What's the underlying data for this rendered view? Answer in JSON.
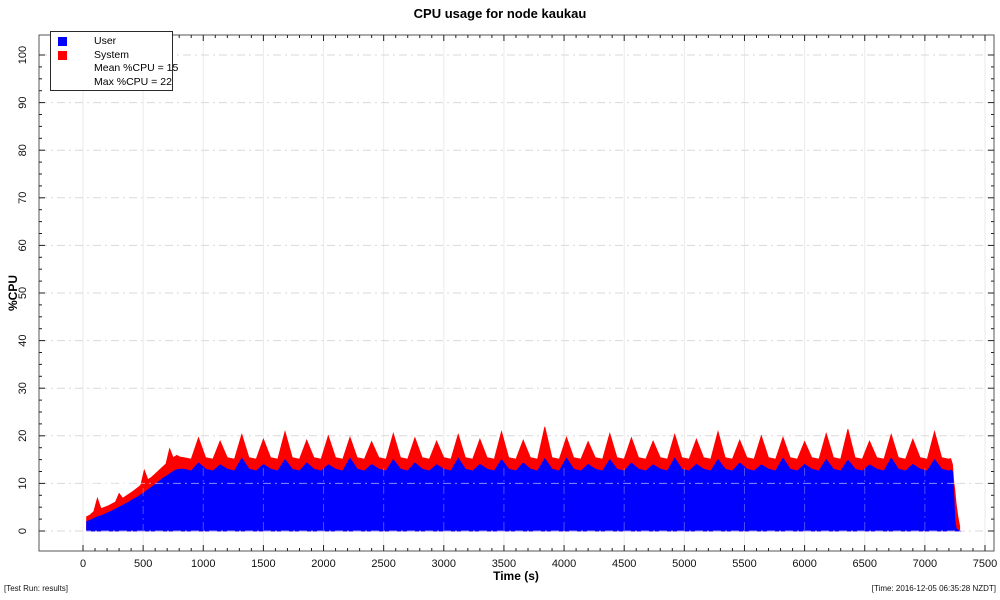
{
  "window": {
    "background": "#ffffff"
  },
  "footer": {
    "left": "[Test Run: results]",
    "right": "[Time: 2016-12-05 06:35:28 NZDT]"
  },
  "chart_data": {
    "type": "area",
    "stacked": true,
    "title": "CPU usage for node kaukau",
    "xlabel": "Time (s)",
    "ylabel": "%CPU",
    "x_ticks": [
      0,
      500,
      1000,
      1500,
      2000,
      2500,
      3000,
      3500,
      4000,
      4500,
      5000,
      5500,
      6000,
      6500,
      7000,
      7500
    ],
    "y_ticks": [
      0,
      10,
      20,
      30,
      40,
      50,
      60,
      70,
      80,
      90,
      100
    ],
    "x_minor_step": 100,
    "y_minor_step": 2.5,
    "ylim": [
      0,
      100
    ],
    "xlim": [
      0,
      7500
    ],
    "grid": true,
    "legend": {
      "position": "top-left",
      "entries": [
        {
          "label": "User",
          "color": "#0000ff"
        },
        {
          "label": "System",
          "color": "#ff0000"
        }
      ],
      "notes": [
        "Mean %CPU = 15",
        "Max %CPU = 22"
      ]
    },
    "stats": {
      "mean_pct_cpu": 15,
      "max_pct_cpu": 22
    },
    "colors": {
      "user": "#0000ff",
      "system": "#ff0000"
    },
    "series_format": [
      "time_s",
      "user_pct",
      "system_pct"
    ],
    "samples": [
      [
        30,
        2.0,
        1.0
      ],
      [
        60,
        2.3,
        1.1
      ],
      [
        90,
        2.6,
        1.5
      ],
      [
        120,
        3.0,
        3.9
      ],
      [
        150,
        3.2,
        1.5
      ],
      [
        180,
        3.5,
        1.5
      ],
      [
        210,
        3.9,
        1.4
      ],
      [
        240,
        4.2,
        1.5
      ],
      [
        270,
        4.6,
        1.5
      ],
      [
        300,
        5.0,
        2.9
      ],
      [
        330,
        5.4,
        1.5
      ],
      [
        360,
        5.8,
        1.6
      ],
      [
        390,
        6.2,
        1.7
      ],
      [
        420,
        6.7,
        1.7
      ],
      [
        450,
        7.1,
        1.9
      ],
      [
        480,
        7.6,
        2.0
      ],
      [
        510,
        8.1,
        4.7
      ],
      [
        540,
        8.7,
        2.1
      ],
      [
        570,
        9.2,
        2.1
      ],
      [
        600,
        9.8,
        2.2
      ],
      [
        630,
        10.4,
        2.3
      ],
      [
        660,
        11.0,
        2.4
      ],
      [
        690,
        11.5,
        2.6
      ],
      [
        720,
        12.0,
        5.3
      ],
      [
        750,
        12.5,
        2.9
      ],
      [
        780,
        12.9,
        3.0
      ],
      [
        810,
        13.0,
        2.5
      ],
      [
        840,
        13.0,
        2.4
      ],
      [
        900,
        12.6,
        2.5
      ],
      [
        960,
        14.3,
        5.3
      ],
      [
        1020,
        13.0,
        2.4
      ],
      [
        1080,
        12.6,
        2.5
      ],
      [
        1140,
        13.9,
        5.0
      ],
      [
        1200,
        13.0,
        2.4
      ],
      [
        1260,
        12.6,
        2.5
      ],
      [
        1320,
        15.3,
        5.0
      ],
      [
        1380,
        13.0,
        2.4
      ],
      [
        1440,
        12.6,
        2.5
      ],
      [
        1500,
        14.0,
        5.3
      ],
      [
        1560,
        13.0,
        2.4
      ],
      [
        1620,
        12.6,
        2.5
      ],
      [
        1680,
        15.0,
        5.9
      ],
      [
        1740,
        13.0,
        2.4
      ],
      [
        1800,
        12.6,
        2.5
      ],
      [
        1860,
        14.3,
        4.8
      ],
      [
        1920,
        13.0,
        2.4
      ],
      [
        1980,
        12.6,
        2.5
      ],
      [
        2040,
        13.9,
        6.1
      ],
      [
        2100,
        13.0,
        2.4
      ],
      [
        2160,
        12.6,
        2.5
      ],
      [
        2220,
        15.3,
        4.4
      ],
      [
        2280,
        13.0,
        2.4
      ],
      [
        2340,
        12.6,
        2.5
      ],
      [
        2400,
        14.0,
        4.8
      ],
      [
        2460,
        13.0,
        2.4
      ],
      [
        2520,
        12.6,
        2.5
      ],
      [
        2580,
        15.0,
        5.5
      ],
      [
        2640,
        13.0,
        2.4
      ],
      [
        2700,
        12.6,
        2.5
      ],
      [
        2760,
        14.3,
        5.3
      ],
      [
        2820,
        13.0,
        2.4
      ],
      [
        2880,
        12.6,
        2.5
      ],
      [
        2940,
        13.9,
        5.0
      ],
      [
        3000,
        13.0,
        2.4
      ],
      [
        3060,
        12.6,
        2.5
      ],
      [
        3120,
        15.3,
        5.0
      ],
      [
        3180,
        13.0,
        2.4
      ],
      [
        3240,
        12.6,
        2.5
      ],
      [
        3300,
        14.0,
        5.3
      ],
      [
        3360,
        13.0,
        2.4
      ],
      [
        3420,
        12.6,
        2.5
      ],
      [
        3480,
        15.0,
        5.9
      ],
      [
        3540,
        13.0,
        2.4
      ],
      [
        3600,
        12.6,
        2.5
      ],
      [
        3660,
        14.3,
        4.8
      ],
      [
        3720,
        13.0,
        2.4
      ],
      [
        3780,
        12.6,
        2.5
      ],
      [
        3840,
        15.2,
        6.7
      ],
      [
        3900,
        13.0,
        2.4
      ],
      [
        3960,
        12.6,
        2.5
      ],
      [
        4020,
        15.3,
        4.4
      ],
      [
        4080,
        13.0,
        2.4
      ],
      [
        4140,
        12.6,
        2.5
      ],
      [
        4200,
        14.0,
        4.8
      ],
      [
        4260,
        13.0,
        2.4
      ],
      [
        4320,
        12.6,
        2.5
      ],
      [
        4380,
        15.0,
        5.5
      ],
      [
        4440,
        13.0,
        2.4
      ],
      [
        4500,
        12.6,
        2.5
      ],
      [
        4560,
        14.3,
        5.3
      ],
      [
        4620,
        13.0,
        2.4
      ],
      [
        4680,
        12.6,
        2.5
      ],
      [
        4740,
        13.9,
        5.0
      ],
      [
        4800,
        13.0,
        2.4
      ],
      [
        4860,
        12.6,
        2.5
      ],
      [
        4920,
        15.3,
        5.0
      ],
      [
        4980,
        13.0,
        2.4
      ],
      [
        5040,
        12.6,
        2.5
      ],
      [
        5100,
        14.0,
        5.3
      ],
      [
        5160,
        13.0,
        2.4
      ],
      [
        5220,
        12.6,
        2.5
      ],
      [
        5280,
        15.0,
        5.9
      ],
      [
        5340,
        13.0,
        2.4
      ],
      [
        5400,
        12.6,
        2.5
      ],
      [
        5460,
        14.3,
        4.8
      ],
      [
        5520,
        13.0,
        2.4
      ],
      [
        5580,
        12.6,
        2.5
      ],
      [
        5640,
        13.9,
        6.1
      ],
      [
        5700,
        13.0,
        2.4
      ],
      [
        5760,
        12.6,
        2.5
      ],
      [
        5820,
        15.3,
        4.4
      ],
      [
        5880,
        13.0,
        2.4
      ],
      [
        5940,
        12.6,
        2.5
      ],
      [
        6000,
        14.0,
        4.8
      ],
      [
        6060,
        13.0,
        2.4
      ],
      [
        6120,
        12.6,
        2.5
      ],
      [
        6180,
        15.0,
        5.5
      ],
      [
        6240,
        13.0,
        2.4
      ],
      [
        6300,
        12.6,
        2.5
      ],
      [
        6360,
        14.9,
        6.5
      ],
      [
        6420,
        13.0,
        2.4
      ],
      [
        6480,
        12.6,
        2.5
      ],
      [
        6540,
        13.9,
        5.0
      ],
      [
        6600,
        13.0,
        2.4
      ],
      [
        6660,
        12.6,
        2.5
      ],
      [
        6720,
        15.3,
        5.0
      ],
      [
        6780,
        13.0,
        2.4
      ],
      [
        6840,
        12.6,
        2.5
      ],
      [
        6900,
        14.0,
        5.3
      ],
      [
        6960,
        13.0,
        2.4
      ],
      [
        7020,
        12.6,
        2.5
      ],
      [
        7080,
        15.0,
        5.9
      ],
      [
        7140,
        13.0,
        2.4
      ],
      [
        7200,
        12.6,
        2.5
      ],
      [
        7215,
        12.8,
        2.4
      ],
      [
        7230,
        12.5,
        1.5
      ],
      [
        7240,
        8.0,
        2.5
      ],
      [
        7250,
        2.5,
        6.0
      ],
      [
        7260,
        0.6,
        5.2
      ],
      [
        7275,
        0.2,
        2.8
      ],
      [
        7290,
        0.0,
        1.0
      ]
    ]
  }
}
